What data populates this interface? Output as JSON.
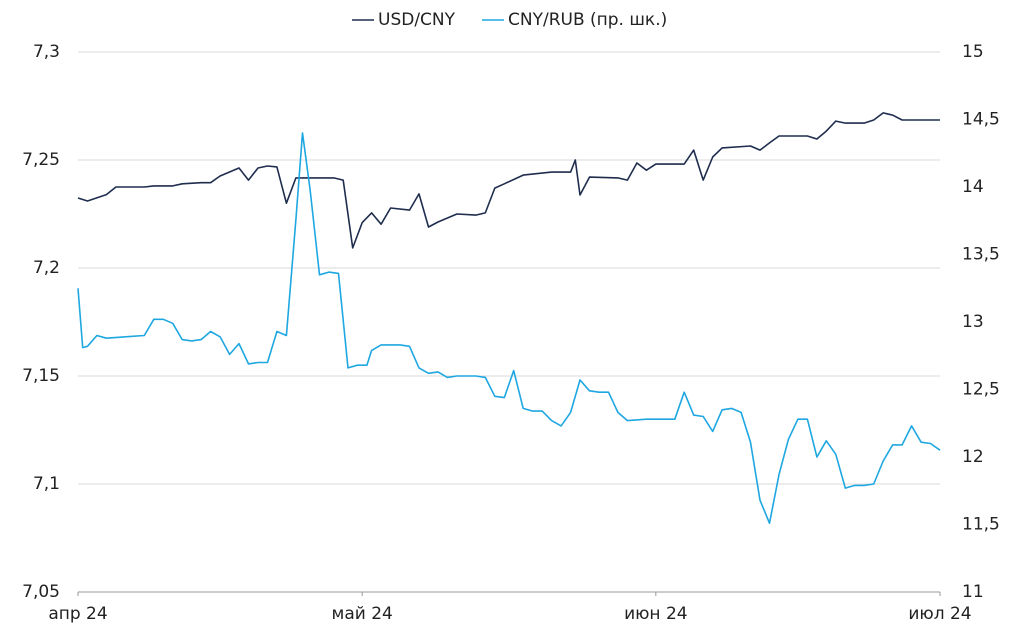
{
  "chart_data": {
    "type": "line",
    "xlim": [
      0,
      91
    ],
    "xticks": [
      {
        "value": 0,
        "label": "апр 24"
      },
      {
        "value": 30,
        "label": "май 24"
      },
      {
        "value": 61,
        "label": "июн 24"
      },
      {
        "value": 91,
        "label": "июл 24"
      }
    ],
    "ylim": [
      7.05,
      7.3
    ],
    "yticks": [
      {
        "value": 7.05,
        "label": "7,05"
      },
      {
        "value": 7.1,
        "label": "7,1"
      },
      {
        "value": 7.15,
        "label": "7,15"
      },
      {
        "value": 7.2,
        "label": "7,2"
      },
      {
        "value": 7.25,
        "label": "7,25"
      },
      {
        "value": 7.3,
        "label": "7,3"
      }
    ],
    "y2lim": [
      11,
      15
    ],
    "y2ticks": [
      11,
      {
        "value": 11.5,
        "label": "11,5"
      },
      12,
      {
        "value": 12.5,
        "label": "12,5"
      },
      13,
      {
        "value": 13.5,
        "label": "13,5"
      },
      14,
      {
        "value": 14.5,
        "label": "14,5"
      },
      15
    ],
    "grid": true,
    "legend": "top",
    "series": [
      {
        "name": "USD/CNY",
        "color": "#1f2d4e",
        "x": [
          0,
          1,
          3,
          4,
          7,
          8,
          10,
          11,
          13,
          14,
          15,
          17,
          18,
          19,
          20,
          21,
          22,
          23,
          26,
          27,
          28,
          29,
          30,
          31,
          32,
          33,
          35,
          36,
          37,
          38,
          40,
          42,
          43,
          44,
          45,
          47,
          50,
          51,
          52,
          52.5,
          53,
          54,
          57,
          58,
          59,
          60,
          61,
          64,
          65,
          66,
          67,
          68,
          71,
          72,
          73,
          74,
          77,
          78,
          79,
          80,
          81,
          83,
          84,
          85,
          86,
          87,
          91
        ],
        "values": [
          7.2324,
          7.231,
          7.234,
          7.2375,
          7.2375,
          7.238,
          7.238,
          7.239,
          7.2395,
          7.2395,
          7.2426,
          7.2463,
          7.2407,
          7.2463,
          7.2472,
          7.2468,
          7.23,
          7.2417,
          7.2417,
          7.2417,
          7.2407,
          7.2093,
          7.221,
          7.2255,
          7.2203,
          7.2278,
          7.2268,
          7.2343,
          7.219,
          7.2213,
          7.225,
          7.2245,
          7.2255,
          7.237,
          7.239,
          7.243,
          7.2444,
          7.2444,
          7.2444,
          7.25,
          7.2338,
          7.2421,
          7.2417,
          7.2407,
          7.2486,
          7.2453,
          7.2481,
          7.2481,
          7.2546,
          7.2407,
          7.2514,
          7.2556,
          7.2565,
          7.2546,
          7.2579,
          7.2611,
          7.2611,
          7.2597,
          7.2634,
          7.268,
          7.2671,
          7.2671,
          7.2685,
          7.2718,
          7.2708,
          7.2685,
          7.2685
        ]
      },
      {
        "name": "CNY/RUB (пр. шк.)",
        "color": "#1ea7e1",
        "axis": "y2",
        "x": [
          0,
          0.5,
          1,
          2,
          3,
          5,
          7,
          8,
          9,
          10,
          11,
          12,
          13,
          14,
          15,
          16,
          17,
          18,
          19,
          20,
          21,
          22,
          23,
          23.7,
          24.5,
          25.5,
          26.5,
          27.5,
          28.5,
          29.5,
          30.5,
          31,
          32,
          34,
          35,
          36,
          37,
          38,
          39,
          40,
          42,
          43,
          44,
          45,
          46,
          47,
          48,
          49,
          50,
          51,
          52,
          53,
          54,
          55,
          56,
          57,
          58,
          60,
          61,
          63,
          64,
          65,
          66,
          67,
          68,
          69,
          70,
          71,
          72,
          73,
          74,
          75,
          76,
          77,
          78,
          79,
          80,
          81,
          82,
          83,
          84,
          85,
          86,
          87,
          88,
          89,
          90,
          91
        ],
        "values": [
          13.25,
          12.81,
          12.82,
          12.9,
          12.88,
          12.89,
          12.9,
          13.02,
          13.02,
          12.99,
          12.87,
          12.86,
          12.87,
          12.93,
          12.89,
          12.76,
          12.84,
          12.69,
          12.7,
          12.7,
          12.93,
          12.9,
          13.76,
          14.4,
          13.98,
          13.35,
          13.37,
          13.36,
          12.66,
          12.68,
          12.68,
          12.79,
          12.83,
          12.83,
          12.82,
          12.66,
          12.62,
          12.63,
          12.59,
          12.6,
          12.6,
          12.59,
          12.45,
          12.44,
          12.64,
          12.36,
          12.34,
          12.34,
          12.27,
          12.23,
          12.33,
          12.57,
          12.49,
          12.48,
          12.48,
          12.33,
          12.27,
          12.28,
          12.28,
          12.28,
          12.48,
          12.31,
          12.3,
          12.19,
          12.35,
          12.36,
          12.33,
          12.11,
          11.68,
          11.51,
          11.87,
          12.13,
          12.28,
          12.28,
          12.0,
          12.12,
          12.02,
          11.77,
          11.79,
          11.79,
          11.8,
          11.97,
          12.09,
          12.09,
          12.23,
          12.11,
          12.1,
          12.05
        ]
      }
    ]
  }
}
